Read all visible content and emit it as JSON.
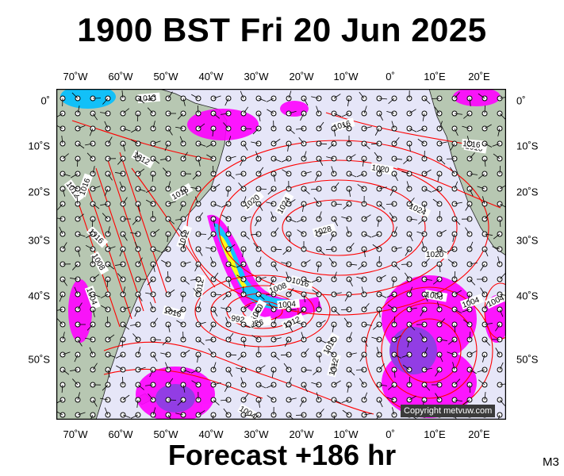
{
  "header": {
    "title": "1900 BST Fri 20 Jun 2025"
  },
  "footer": {
    "forecast": "Forecast +186 hr",
    "code": "M3"
  },
  "copyright": "Copyright metvuw.com",
  "axes": {
    "longitudes": [
      "70˚W",
      "60˚W",
      "50˚W",
      "40˚W",
      "30˚W",
      "20˚W",
      "10˚W",
      "0˚",
      "10˚E",
      "20˚E"
    ],
    "latitudes": [
      "0˚",
      "10˚S",
      "20˚S",
      "30˚S",
      "40˚S",
      "50˚S"
    ]
  },
  "isobar_labels": [
    "1012",
    "1016",
    "1012",
    "1012",
    "1016",
    "1016",
    "1016",
    "1020",
    "1020",
    "1024",
    "1024",
    "1028",
    "1020",
    "1016",
    "1012",
    "1008",
    "1004",
    "1000",
    "996",
    "992",
    "1004",
    "1016",
    "1012",
    "1016",
    "1012",
    "1008",
    "1004",
    "1004",
    "1008",
    "1016",
    "1012",
    "1004",
    "1016"
  ],
  "colors": {
    "ocean": "#e6e6f8",
    "land": "#b7c7b2",
    "isobar": "#ff0000",
    "rain_light": "#ff00ff",
    "rain_mid": "#8a2be2",
    "rain_heavy": "#00bfff",
    "rain_extreme": "#ffff00"
  }
}
